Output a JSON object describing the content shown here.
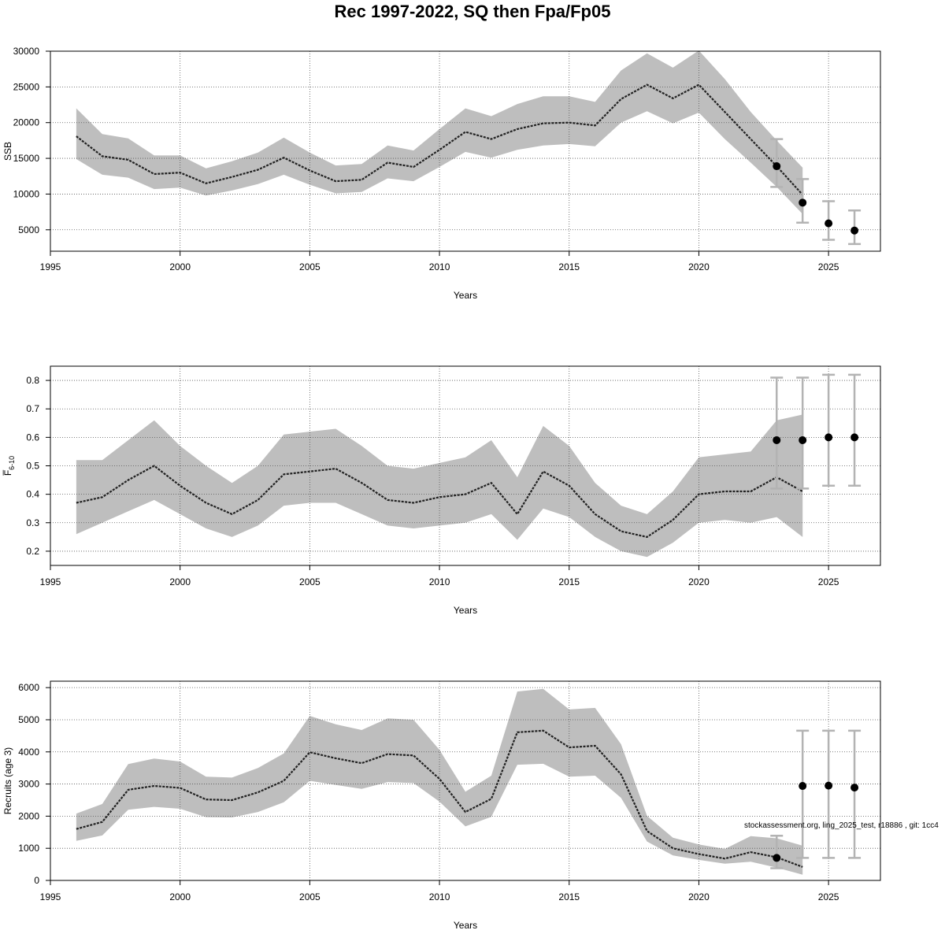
{
  "title": "Rec 1997-2022, SQ then Fpa/Fp05",
  "footnote": "stockassessment.org, ling_2025_test, r18886 , git: 1cc4",
  "colors": {
    "band": "#bebebe",
    "line": "#222222",
    "errorbar": "#b3b3b3",
    "point": "#000000",
    "grid": "#555555",
    "frame": "#000000"
  },
  "chart_data": [
    {
      "type": "line",
      "xlabel": "Years",
      "ylabel": "SSB",
      "xlim": [
        1995,
        2027
      ],
      "ylim": [
        2000,
        30000
      ],
      "xticks": [
        1995,
        2000,
        2005,
        2010,
        2015,
        2020,
        2025
      ],
      "yticks": [
        5000,
        10000,
        15000,
        20000,
        25000,
        30000
      ],
      "grid": true,
      "estimate": {
        "x": [
          1996,
          1997,
          1998,
          1999,
          2000,
          2001,
          2002,
          2003,
          2004,
          2005,
          2006,
          2007,
          2008,
          2009,
          2010,
          2011,
          2012,
          2013,
          2014,
          2015,
          2016,
          2017,
          2018,
          2019,
          2020,
          2021,
          2022,
          2023,
          2024
        ],
        "y": [
          18100,
          15300,
          14800,
          12800,
          13000,
          11500,
          12400,
          13400,
          15100,
          13300,
          11800,
          12000,
          14400,
          13800,
          16200,
          18700,
          17700,
          19100,
          19900,
          20000,
          19600,
          23300,
          25300,
          23400,
          25300,
          21500,
          17700,
          13900,
          9900
        ],
        "lower": [
          14900,
          12700,
          12300,
          10700,
          10900,
          9800,
          10500,
          11400,
          12700,
          11300,
          10100,
          10300,
          12200,
          11800,
          13800,
          15900,
          15100,
          16200,
          16800,
          17000,
          16700,
          20000,
          21600,
          19900,
          21400,
          17700,
          14400,
          11000,
          7200
        ],
        "upper": [
          22000,
          18400,
          17800,
          15400,
          15400,
          13600,
          14600,
          15800,
          17900,
          15800,
          14000,
          14200,
          16800,
          16100,
          19100,
          22000,
          20900,
          22600,
          23700,
          23700,
          22900,
          27300,
          29700,
          27700,
          30100,
          26100,
          21500,
          17500,
          13700
        ]
      },
      "forecast": {
        "x": [
          2023,
          2024,
          2025,
          2026
        ],
        "median": [
          13900,
          8800,
          5900,
          4900
        ],
        "lower": [
          11000,
          6000,
          3600,
          3000
        ],
        "upper": [
          17700,
          12100,
          9000,
          7700
        ]
      }
    },
    {
      "type": "line",
      "xlabel": "Years",
      "ylabel": "F̅6-10",
      "ylabel_main": "F̅",
      "ylabel_sub": "6-10",
      "xlim": [
        1995,
        2027
      ],
      "ylim": [
        0.15,
        0.85
      ],
      "xticks": [
        1995,
        2000,
        2005,
        2010,
        2015,
        2020,
        2025
      ],
      "yticks": [
        0.2,
        0.3,
        0.4,
        0.5,
        0.6,
        0.7,
        0.8
      ],
      "grid": true,
      "estimate": {
        "x": [
          1996,
          1997,
          1998,
          1999,
          2000,
          2001,
          2002,
          2003,
          2004,
          2005,
          2006,
          2007,
          2008,
          2009,
          2010,
          2011,
          2012,
          2013,
          2014,
          2015,
          2016,
          2017,
          2018,
          2019,
          2020,
          2021,
          2022,
          2023,
          2024
        ],
        "y": [
          0.37,
          0.39,
          0.45,
          0.5,
          0.43,
          0.37,
          0.33,
          0.38,
          0.47,
          0.48,
          0.49,
          0.44,
          0.38,
          0.37,
          0.39,
          0.4,
          0.44,
          0.33,
          0.48,
          0.43,
          0.33,
          0.27,
          0.25,
          0.31,
          0.4,
          0.41,
          0.41,
          0.46,
          0.41
        ],
        "lower": [
          0.26,
          0.3,
          0.34,
          0.38,
          0.33,
          0.28,
          0.25,
          0.29,
          0.36,
          0.37,
          0.37,
          0.33,
          0.29,
          0.28,
          0.29,
          0.3,
          0.33,
          0.24,
          0.35,
          0.32,
          0.25,
          0.2,
          0.18,
          0.23,
          0.3,
          0.31,
          0.3,
          0.32,
          0.25
        ],
        "upper": [
          0.52,
          0.52,
          0.59,
          0.66,
          0.57,
          0.5,
          0.44,
          0.5,
          0.61,
          0.62,
          0.63,
          0.57,
          0.5,
          0.49,
          0.51,
          0.53,
          0.59,
          0.46,
          0.64,
          0.57,
          0.44,
          0.36,
          0.33,
          0.41,
          0.53,
          0.54,
          0.55,
          0.66,
          0.68
        ]
      },
      "forecast": {
        "x": [
          2023,
          2024,
          2025,
          2026
        ],
        "median": [
          0.59,
          0.59,
          0.6,
          0.6
        ],
        "lower": [
          0.42,
          0.42,
          0.43,
          0.43
        ],
        "upper": [
          0.81,
          0.81,
          0.82,
          0.82
        ]
      }
    },
    {
      "type": "line",
      "xlabel": "Years",
      "ylabel": "Recruits (age 3)",
      "xlim": [
        1995,
        2027
      ],
      "ylim": [
        0,
        6200
      ],
      "xticks": [
        1995,
        2000,
        2005,
        2010,
        2015,
        2020,
        2025
      ],
      "yticks": [
        0,
        1000,
        2000,
        3000,
        4000,
        5000,
        6000
      ],
      "grid": true,
      "estimate": {
        "x": [
          1996,
          1997,
          1998,
          1999,
          2000,
          2001,
          2002,
          2003,
          2004,
          2005,
          2006,
          2007,
          2008,
          2009,
          2010,
          2011,
          2012,
          2013,
          2014,
          2015,
          2016,
          2017,
          2018,
          2019,
          2020,
          2021,
          2022,
          2023,
          2024
        ],
        "y": [
          1600,
          1820,
          2820,
          2940,
          2880,
          2520,
          2500,
          2740,
          3100,
          3990,
          3800,
          3650,
          3930,
          3890,
          3160,
          2130,
          2540,
          4610,
          4660,
          4140,
          4190,
          3300,
          1540,
          1000,
          820,
          680,
          880,
          720,
          420
        ],
        "lower": [
          1230,
          1400,
          2200,
          2290,
          2230,
          1970,
          1960,
          2130,
          2430,
          3100,
          2970,
          2850,
          3060,
          3030,
          2450,
          1680,
          1980,
          3600,
          3630,
          3230,
          3260,
          2570,
          1210,
          780,
          640,
          520,
          580,
          400,
          180
        ],
        "upper": [
          2080,
          2380,
          3620,
          3790,
          3700,
          3230,
          3200,
          3500,
          3950,
          5120,
          4860,
          4680,
          5040,
          5000,
          4060,
          2760,
          3260,
          5880,
          5960,
          5320,
          5370,
          4240,
          2010,
          1330,
          1120,
          980,
          1380,
          1310,
          1080
        ]
      },
      "forecast": {
        "x": [
          2023,
          2024,
          2025,
          2026
        ],
        "median": [
          700,
          2940,
          2950,
          2890
        ],
        "lower": [
          380,
          700,
          700,
          700
        ],
        "upper": [
          1390,
          4660,
          4660,
          4660
        ]
      }
    }
  ]
}
